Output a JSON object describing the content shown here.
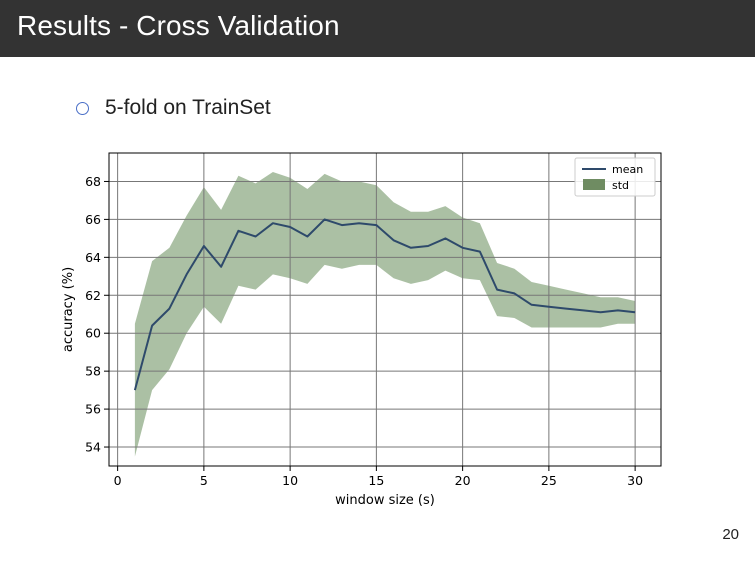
{
  "slide": {
    "title": "Results - Cross Validation",
    "bullet": "5-fold on TrainSet",
    "page_number": "20"
  },
  "colors": {
    "title_bar": "#333333",
    "mean_line": "#2e4a6b",
    "std_fill": "#8fab86",
    "std_legend": "#6f8c62",
    "bullet": "#4a6fc7"
  },
  "chart_data": {
    "type": "line",
    "title": "",
    "xlabel": "window size (s)",
    "ylabel": "accuracy (%)",
    "xlim": [
      -0.5,
      31.5
    ],
    "ylim": [
      53.0,
      69.5
    ],
    "xticks": [
      0,
      5,
      10,
      15,
      20,
      25,
      30
    ],
    "yticks": [
      54,
      56,
      58,
      60,
      62,
      64,
      66,
      68
    ],
    "grid": true,
    "legend_position": "top-right",
    "x": [
      1,
      2,
      3,
      4,
      5,
      6,
      7,
      8,
      9,
      10,
      11,
      12,
      13,
      14,
      15,
      16,
      17,
      18,
      19,
      20,
      21,
      22,
      23,
      24,
      25,
      26,
      27,
      28,
      29,
      30
    ],
    "series": [
      {
        "name": "mean",
        "kind": "line",
        "values": [
          57.0,
          60.4,
          61.3,
          63.1,
          64.6,
          63.5,
          65.4,
          65.1,
          65.8,
          65.6,
          65.1,
          66.0,
          65.7,
          65.8,
          65.7,
          64.9,
          64.5,
          64.6,
          65.0,
          64.5,
          64.3,
          62.3,
          62.1,
          61.5,
          61.4,
          61.3,
          61.2,
          61.1,
          61.2,
          61.1
        ]
      },
      {
        "name": "std",
        "kind": "band",
        "lower": [
          53.5,
          57.0,
          58.1,
          60.0,
          61.4,
          60.5,
          62.5,
          62.3,
          63.1,
          62.9,
          62.6,
          63.6,
          63.4,
          63.6,
          63.6,
          62.9,
          62.6,
          62.8,
          63.3,
          62.9,
          62.8,
          60.9,
          60.8,
          60.3,
          60.3,
          60.3,
          60.3,
          60.3,
          60.5,
          60.5
        ],
        "upper": [
          60.5,
          63.8,
          64.5,
          66.2,
          67.7,
          66.5,
          68.3,
          67.9,
          68.5,
          68.2,
          67.6,
          68.4,
          68.0,
          68.0,
          67.8,
          66.9,
          66.4,
          66.4,
          66.7,
          66.1,
          65.8,
          63.7,
          63.4,
          62.7,
          62.5,
          62.3,
          62.1,
          61.9,
          61.9,
          61.7
        ]
      }
    ]
  }
}
